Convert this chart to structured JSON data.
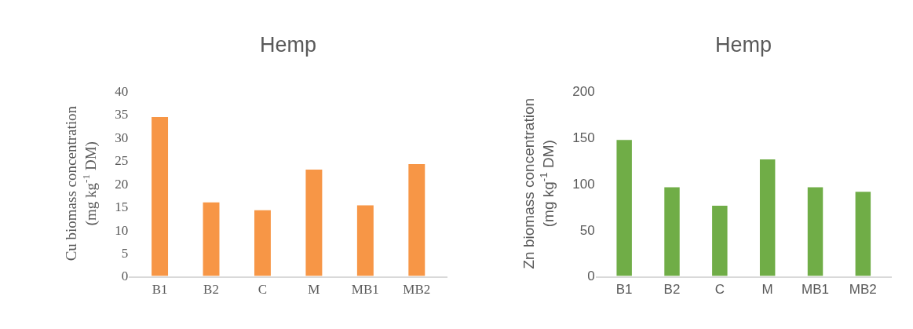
{
  "chart_data": [
    {
      "type": "bar",
      "title": "Hemp",
      "ylabel": "Cu biomass concentration\n(mg kg$^{-1}$ DM)",
      "categories": [
        "B1",
        "B2",
        "C",
        "M",
        "MB1",
        "MB2"
      ],
      "values": [
        34.4,
        15.9,
        14.2,
        23.0,
        15.3,
        24.2
      ],
      "color": "#f79646",
      "ylim": [
        0,
        40
      ],
      "yticks": [
        0,
        5,
        10,
        15,
        20,
        25,
        30,
        35,
        40
      ],
      "grid": false
    },
    {
      "type": "bar",
      "title": "Hemp",
      "ylabel": "Zn biomass concentration\n(mg kg$^{-1}$ DM)",
      "categories": [
        "B1",
        "B2",
        "C",
        "M",
        "MB1",
        "MB2"
      ],
      "values": [
        147,
        96,
        76,
        126,
        96,
        91
      ],
      "color": "#70ad47",
      "ylim": [
        0,
        200
      ],
      "yticks": [
        0,
        50,
        100,
        150,
        200
      ],
      "grid": false
    }
  ]
}
